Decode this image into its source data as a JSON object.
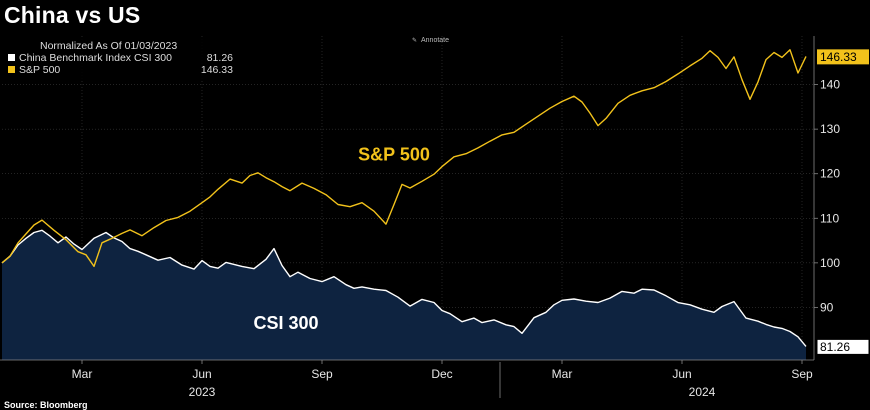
{
  "title": "China vs US",
  "source": "Source: Bloomberg",
  "annotate_label": "Annotate",
  "chart_data": {
    "type": "line",
    "legend": {
      "header": "Normalized As Of 01/03/2023",
      "placement": "top-left",
      "entries": [
        {
          "name": "China Benchmark Index CSI 300",
          "last": "81.26",
          "color": "#ffffff"
        },
        {
          "name": "S&P 500",
          "last": "146.33",
          "color": "#f2c21b"
        }
      ]
    },
    "x_ticks": [
      "Mar",
      "Jun",
      "Sep",
      "Dec",
      "Mar",
      "Jun",
      "Sep"
    ],
    "x_tick_months": [
      2,
      5,
      8,
      11,
      14,
      17,
      20
    ],
    "year_labels": [
      {
        "label": "2023",
        "month": 5
      },
      {
        "label": "2024",
        "month": 17.5
      }
    ],
    "year_divider_month": 12,
    "xlim_months": [
      0,
      20.3
    ],
    "y_ticks": [
      90,
      100,
      110,
      120,
      130,
      140
    ],
    "ylim": [
      80,
      150
    ],
    "annotations": [
      {
        "text": "S&P 500",
        "color": "#f2c21b",
        "month": 9.8,
        "value": 123
      },
      {
        "text": "CSI 300",
        "color": "#ffffff",
        "month": 7.1,
        "value": 85.2
      }
    ],
    "series": [
      {
        "name": "CSI 300",
        "color": "#ffffff",
        "fill": "#0e2340",
        "last_label": "81.26",
        "x": [
          0,
          0.2,
          0.4,
          0.6,
          0.8,
          1.0,
          1.2,
          1.4,
          1.6,
          1.8,
          2.0,
          2.3,
          2.6,
          2.8,
          3.0,
          3.2,
          3.4,
          3.6,
          3.9,
          4.2,
          4.5,
          4.8,
          5.0,
          5.2,
          5.4,
          5.6,
          6.0,
          6.3,
          6.6,
          6.8,
          7.0,
          7.2,
          7.4,
          7.7,
          8.0,
          8.3,
          8.6,
          8.8,
          9.0,
          9.3,
          9.6,
          9.9,
          10.2,
          10.5,
          10.8,
          11.0,
          11.2,
          11.5,
          11.8,
          12.0,
          12.3,
          12.6,
          12.8,
          13.0,
          13.3,
          13.6,
          13.8,
          14.0,
          14.3,
          14.6,
          14.9,
          15.2,
          15.5,
          15.8,
          16.0,
          16.3,
          16.6,
          16.9,
          17.2,
          17.5,
          17.8,
          18.0,
          18.3,
          18.6,
          18.9,
          19.1,
          19.3,
          19.5,
          19.7,
          19.9,
          20.1
        ],
        "values": [
          100,
          101.5,
          104,
          105.5,
          106.8,
          107.3,
          106,
          104.5,
          105.8,
          104.2,
          103,
          105.5,
          106.8,
          105.6,
          104.8,
          103.2,
          102.6,
          101.8,
          100.6,
          101.2,
          99.5,
          98.6,
          100.5,
          99.2,
          98.8,
          100.1,
          99.2,
          98.7,
          100.8,
          103.2,
          99.4,
          96.9,
          97.9,
          96.5,
          95.8,
          96.9,
          95.1,
          94.3,
          94.6,
          94.1,
          93.8,
          92.3,
          90.3,
          91.8,
          91.1,
          89.3,
          88.6,
          86.8,
          87.6,
          86.6,
          87.2,
          86.1,
          85.7,
          84.2,
          87.7,
          88.9,
          90.6,
          91.6,
          91.9,
          91.4,
          91.1,
          92.1,
          93.6,
          93.2,
          94.1,
          93.9,
          92.6,
          91.1,
          90.6,
          89.6,
          88.9,
          90.2,
          91.3,
          87.6,
          86.9,
          86.2,
          85.6,
          85.3,
          84.6,
          83.4,
          81.26
        ]
      },
      {
        "name": "S&P 500",
        "color": "#f2c21b",
        "last_label": "146.33",
        "x": [
          0,
          0.2,
          0.4,
          0.6,
          0.8,
          1.0,
          1.3,
          1.6,
          1.9,
          2.1,
          2.3,
          2.5,
          2.7,
          3.0,
          3.2,
          3.5,
          3.8,
          4.1,
          4.4,
          4.7,
          5.0,
          5.2,
          5.4,
          5.7,
          6.0,
          6.2,
          6.4,
          6.6,
          6.8,
          7.0,
          7.2,
          7.5,
          7.8,
          8.1,
          8.4,
          8.7,
          9.0,
          9.3,
          9.6,
          9.8,
          10.0,
          10.2,
          10.5,
          10.8,
          11.0,
          11.3,
          11.6,
          11.9,
          12.2,
          12.5,
          12.8,
          13.1,
          13.4,
          13.7,
          14.0,
          14.3,
          14.5,
          14.7,
          14.9,
          15.1,
          15.4,
          15.7,
          16.0,
          16.3,
          16.6,
          16.9,
          17.2,
          17.5,
          17.7,
          17.9,
          18.1,
          18.3,
          18.5,
          18.7,
          18.9,
          19.1,
          19.3,
          19.5,
          19.7,
          19.9,
          20.1
        ],
        "values": [
          100,
          101.5,
          104.5,
          106.5,
          108.5,
          109.6,
          107.3,
          105.2,
          102.5,
          101.8,
          99.2,
          104.5,
          105.3,
          106.6,
          107.4,
          106.1,
          107.9,
          109.5,
          110.2,
          111.6,
          113.5,
          114.8,
          116.5,
          118.8,
          117.9,
          119.6,
          120.2,
          119.1,
          118.2,
          117.1,
          116.2,
          117.9,
          116.7,
          115.3,
          113.1,
          112.6,
          113.5,
          111.6,
          108.7,
          113.1,
          117.6,
          116.8,
          118.3,
          119.9,
          121.6,
          123.8,
          124.5,
          125.8,
          127.3,
          128.7,
          129.3,
          131.1,
          132.9,
          134.7,
          136.2,
          137.4,
          136.1,
          133.6,
          130.8,
          132.4,
          135.8,
          137.6,
          138.6,
          139.3,
          140.7,
          142.4,
          144.2,
          145.9,
          147.6,
          146.1,
          143.6,
          146.2,
          141.1,
          136.7,
          140.6,
          145.6,
          147.2,
          146.1,
          147.8,
          142.6,
          146.33
        ]
      }
    ]
  }
}
